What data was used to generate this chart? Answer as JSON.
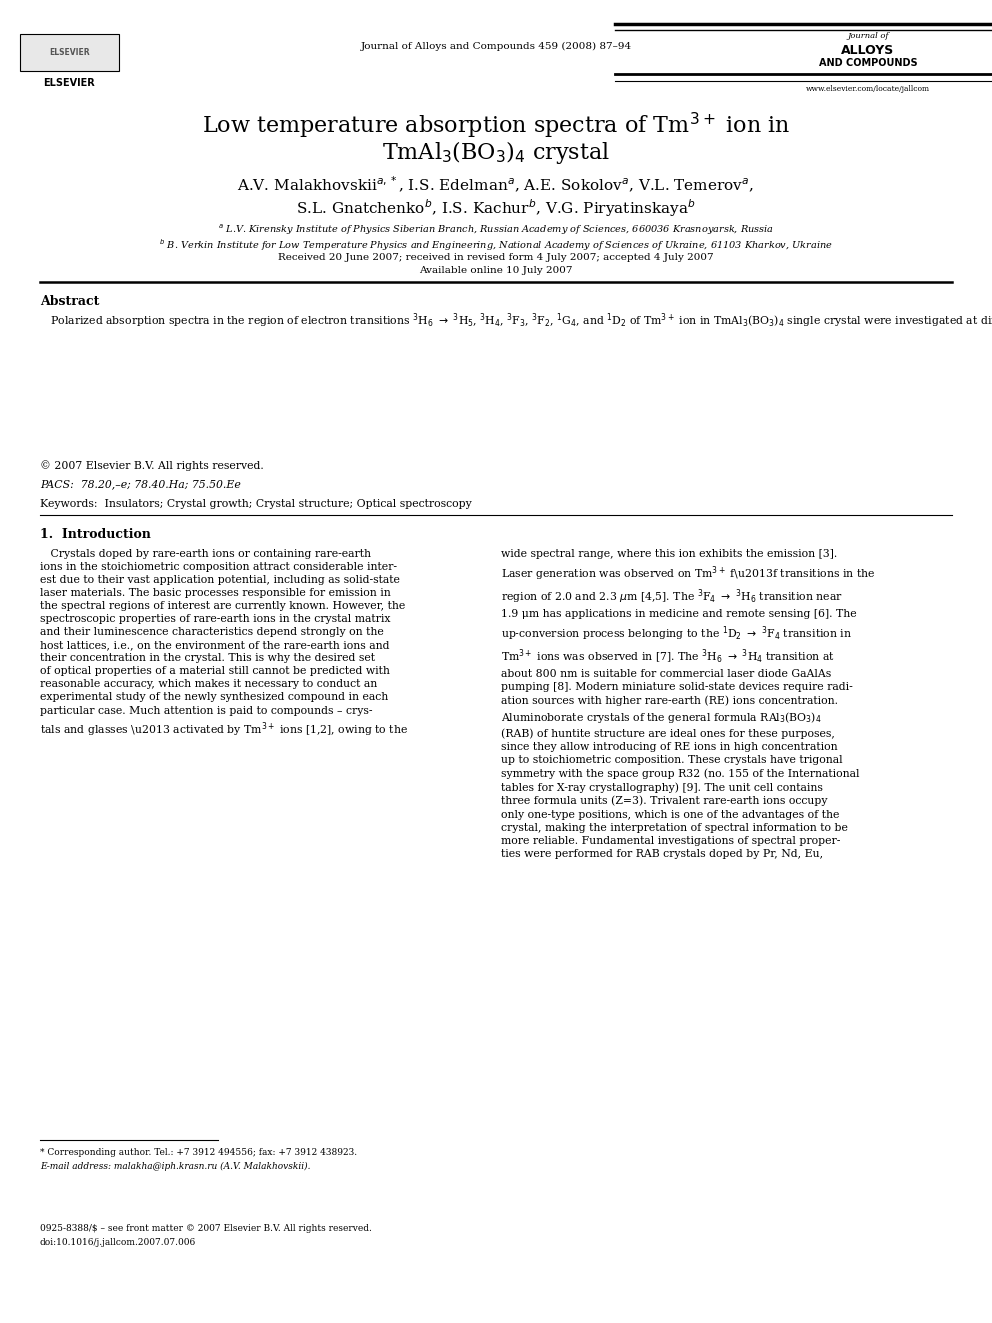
{
  "page_width": 9.92,
  "page_height": 13.23,
  "background_color": "#ffffff",
  "journal_center": "Journal of Alloys and Compounds 459 (2008) 87–94",
  "journal_right_line1": "Journal of",
  "journal_right_line2": "ALLOYS",
  "journal_right_line3": "AND COMPOUNDS",
  "website": "www.elsevier.com/locate/jallcom",
  "pacs": "PACS:  78.20,–e; 78.40.Ha; 75.50.Ee",
  "keywords": "Keywords:  Insulators; Crystal growth; Crystal structure; Optical spectroscopy"
}
